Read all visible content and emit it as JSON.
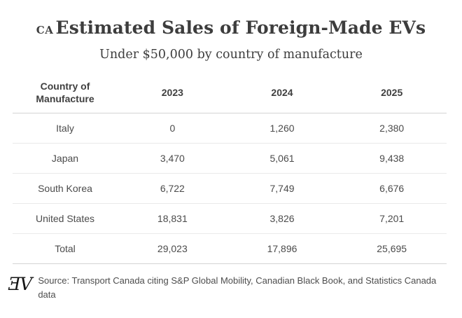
{
  "header": {
    "tag": "CA",
    "title": "Estimated Sales of Foreign-Made EVs",
    "subtitle": "Under $50,000 by country of manufacture"
  },
  "table": {
    "columns": [
      "Country of Manufacture",
      "2023",
      "2024",
      "2025"
    ],
    "rows": [
      [
        "Italy",
        "0",
        "1,260",
        "2,380"
      ],
      [
        "Japan",
        "3,470",
        "5,061",
        "9,438"
      ],
      [
        "South Korea",
        "6,722",
        "7,749",
        "6,676"
      ],
      [
        "United States",
        "18,831",
        "3,826",
        "7,201"
      ],
      [
        "Total",
        "29,023",
        "17,896",
        "25,695"
      ]
    ]
  },
  "footer": {
    "logo_monogram": "ƎV",
    "source": "Source: Transport Canada citing S&P Global Mobility, Canadian Black Book, and Statistics Canada data"
  },
  "colors": {
    "background": "#ffffff",
    "title_text": "#3d3d3d",
    "body_text": "#4b4b4b",
    "rule_strong": "#d4d4d4",
    "rule_light": "#eaeaea"
  },
  "chart_data": {
    "type": "table",
    "title": "CA Estimated Sales of Foreign-Made EVs",
    "subtitle": "Under $50,000 by country of manufacture",
    "columns": [
      "Country of Manufacture",
      "2023",
      "2024",
      "2025"
    ],
    "rows": [
      [
        "Italy",
        0,
        1260,
        2380
      ],
      [
        "Japan",
        3470,
        5061,
        9438
      ],
      [
        "South Korea",
        6722,
        7749,
        6676
      ],
      [
        "United States",
        18831,
        3826,
        7201
      ],
      [
        "Total",
        29023,
        17896,
        25695
      ]
    ],
    "source": "Source: Transport Canada citing S&P Global Mobility, Canadian Black Book, and Statistics Canada data"
  }
}
